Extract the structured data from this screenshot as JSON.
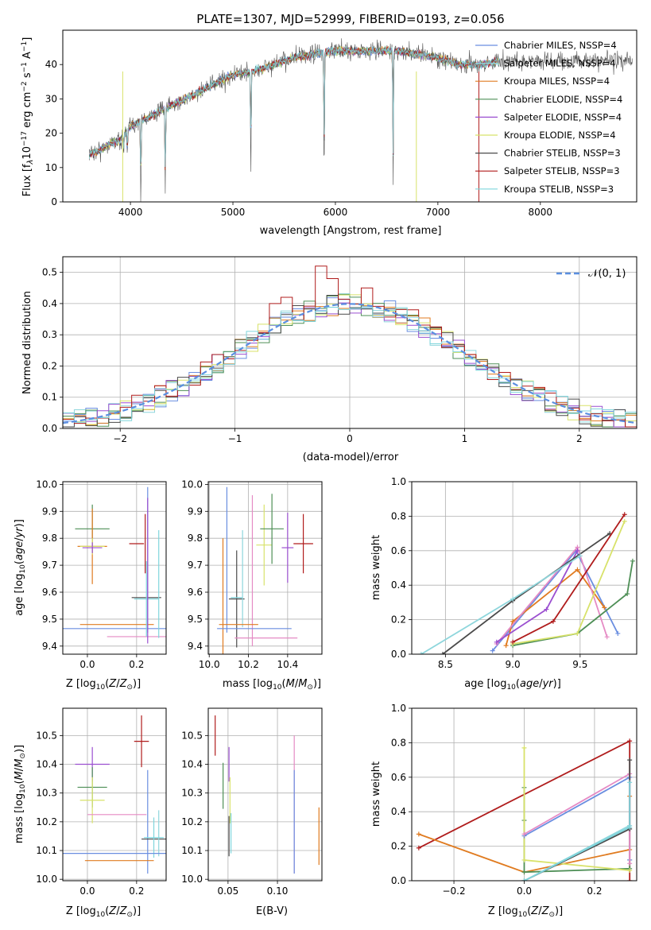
{
  "colors": {
    "chabrier_miles": "#6a8ee0",
    "salpeter_miles": "#8ed6dc",
    "kroupa_miles": "#e07b20",
    "chabrier_elodie": "#4e8f56",
    "salpeter_elodie": "#9b4fd0",
    "kroupa_elodie": "#d8e26a",
    "chabrier_stelib": "#4a4a4a",
    "salpeter_stelib": "#b01c1c",
    "kroupa_stelib": "#7fd5dc",
    "pink": "#e58ac4",
    "normal": "#5b8fe0"
  },
  "chart_data": [
    {
      "id": "spectrum",
      "type": "line",
      "title": "PLATE=1307, MJD=52999, FIBERID=0193, z=0.056",
      "xlabel": "wavelength [Angstrom, rest frame]",
      "ylabel": "Flux [fλ10⁻¹⁷ erg cm⁻² s⁻¹ A⁻¹]",
      "xlim": [
        3340,
        8940
      ],
      "ylim": [
        0,
        50
      ],
      "xticks": [
        4000,
        5000,
        6000,
        7000,
        8000
      ],
      "yticks": [
        0,
        10,
        20,
        30,
        40
      ],
      "grid": false,
      "legend_position": "top-right",
      "series": [
        {
          "name": "Chabrier MILES, NSSP=4",
          "color": "#6a8ee0"
        },
        {
          "name": "Salpeter MILES, NSSP=4",
          "color": "#8ed6dc"
        },
        {
          "name": "Kroupa MILES, NSSP=4",
          "color": "#e07b20"
        },
        {
          "name": "Chabrier ELODIE, NSSP=4",
          "color": "#4e8f56"
        },
        {
          "name": "Salpeter ELODIE, NSSP=4",
          "color": "#9b4fd0"
        },
        {
          "name": "Kroupa ELODIE, NSSP=4",
          "color": "#d8e26a"
        },
        {
          "name": "Chabrier STELIB, NSSP=3",
          "color": "#4a4a4a"
        },
        {
          "name": "Salpeter STELIB, NSSP=3",
          "color": "#b01c1c"
        },
        {
          "name": "Kroupa STELIB, NSSP=3",
          "color": "#7fd5dc"
        }
      ],
      "continuum": [
        [
          3600,
          14
        ],
        [
          3700,
          15
        ],
        [
          3800,
          17
        ],
        [
          3900,
          18
        ],
        [
          4000,
          22
        ],
        [
          4200,
          25
        ],
        [
          4400,
          28
        ],
        [
          4600,
          31
        ],
        [
          4800,
          34
        ],
        [
          5000,
          37
        ],
        [
          5200,
          38
        ],
        [
          5400,
          40
        ],
        [
          5600,
          42
        ],
        [
          5800,
          43
        ],
        [
          6000,
          44
        ],
        [
          6200,
          44
        ],
        [
          6400,
          44
        ],
        [
          6600,
          44
        ],
        [
          6800,
          43
        ],
        [
          7000,
          42
        ],
        [
          7200,
          40
        ],
        [
          7400,
          40
        ],
        [
          7600,
          41
        ]
      ],
      "model_end_wavelength": 7600,
      "observed_end_wavelength": 8900,
      "dips": [
        [
          3934,
          5
        ],
        [
          3969,
          8
        ],
        [
          4101,
          25
        ],
        [
          4340,
          27
        ],
        [
          5175,
          32
        ],
        [
          5890,
          38
        ],
        [
          6563,
          40
        ]
      ]
    },
    {
      "id": "residuals",
      "type": "line",
      "xlabel": "(data-model)/error",
      "ylabel": "Normed distribution",
      "xlim": [
        -2.5,
        2.5
      ],
      "ylim": [
        0,
        0.55
      ],
      "xticks": [
        -2,
        -1,
        0,
        1,
        2
      ],
      "xtick_labels": [
        "−2",
        "−1",
        "0",
        "1",
        "2"
      ],
      "yticks": [
        0.0,
        0.1,
        0.2,
        0.3,
        0.4,
        0.5
      ],
      "ytick_labels": [
        "0.0",
        "0.1",
        "0.2",
        "0.3",
        "0.4",
        "0.5"
      ],
      "grid": true,
      "legend_position": "top-right",
      "gaussian_label": "𝒩(0, 1)",
      "bin_width": 0.1,
      "spike_bins": [
        [
          -0.25,
          0.52
        ],
        [
          -0.15,
          0.48
        ],
        [
          0.15,
          0.45
        ],
        [
          -0.55,
          0.42
        ],
        [
          -0.65,
          0.4
        ],
        [
          0.55,
          0.38
        ]
      ]
    },
    {
      "id": "z-age",
      "type": "scatter",
      "xlabel": "Z [log₁₀(Z/Z☉)]",
      "ylabel": "age  [log₁₀(age/yr)]",
      "xlim": [
        -0.1,
        0.32
      ],
      "ylim": [
        9.37,
        10.01
      ],
      "xticks": [
        0.0,
        0.2
      ],
      "xtick_labels": [
        "0.0",
        "0.2"
      ],
      "yticks": [
        9.4,
        9.5,
        9.6,
        9.7,
        9.8,
        9.9,
        10.0
      ],
      "ytick_labels": [
        "9.4",
        "9.5",
        "9.6",
        "9.7",
        "9.8",
        "9.9",
        "10.0"
      ],
      "grid": true,
      "points": [
        {
          "x": 0.1,
          "y": 9.465,
          "xerr": 0.22,
          "yerr": 0.0,
          "color": "#6a8ee0"
        },
        {
          "x": 0.12,
          "y": 9.48,
          "xerr": 0.15,
          "yerr": 0.0,
          "color": "#e07b20"
        },
        {
          "x": 0.2,
          "y": 9.435,
          "xerr": 0.12,
          "yerr": 0.0,
          "color": "#e58ac4"
        },
        {
          "x": 0.24,
          "y": 9.58,
          "xerr": 0.06,
          "yerr": 0.0,
          "color": "#4a4a4a"
        },
        {
          "x": 0.24,
          "y": 9.575,
          "xerr": 0.05,
          "yerr": 0.14,
          "color": "#7fd5dc"
        },
        {
          "x": 0.245,
          "y": 9.72,
          "xerr": 0.0,
          "yerr": 0.27,
          "color": "#6a8ee0"
        },
        {
          "x": 0.245,
          "y": 9.68,
          "xerr": 0.0,
          "yerr": 0.27,
          "color": "#9b4fd0"
        },
        {
          "x": 0.29,
          "y": 9.63,
          "xerr": 0.0,
          "yerr": 0.2,
          "color": "#7fd5dc"
        },
        {
          "x": 0.235,
          "y": 9.78,
          "xerr": 0.0,
          "yerr": 0.11,
          "color": "#b01c1c"
        },
        {
          "x": 0.2,
          "y": 9.78,
          "xerr": 0.03,
          "yerr": 0.0,
          "color": "#b01c1c"
        },
        {
          "x": 0.02,
          "y": 9.835,
          "xerr": 0.07,
          "yerr": 0.09,
          "color": "#4e8f56"
        },
        {
          "x": 0.02,
          "y": 9.77,
          "xerr": 0.06,
          "yerr": 0.14,
          "color": "#e07b20"
        },
        {
          "x": 0.02,
          "y": 9.77,
          "xerr": 0.05,
          "yerr": 0.03,
          "color": "#d8e26a"
        },
        {
          "x": 0.02,
          "y": 9.765,
          "xerr": 0.04,
          "yerr": 0.02,
          "color": "#9b4fd0"
        }
      ]
    },
    {
      "id": "mass-age",
      "type": "scatter",
      "xlabel": "mass [log₁₀(M/M☉)]",
      "ylabel": "",
      "xlim": [
        9.995,
        10.575
      ],
      "ylim": [
        9.37,
        10.01
      ],
      "xticks": [
        10.0,
        10.2,
        10.4
      ],
      "xtick_labels": [
        "10.0",
        "10.2",
        "10.4"
      ],
      "yticks": [
        9.4,
        9.5,
        9.6,
        9.7,
        9.8,
        9.9,
        10.0
      ],
      "ytick_labels": [
        "9.4",
        "9.5",
        "9.6",
        "9.7",
        "9.8",
        "9.9",
        "10.0"
      ],
      "grid": true,
      "points": [
        {
          "x": 10.07,
          "y": 9.52,
          "xerr": 0.0,
          "yerr": 0.28,
          "color": "#e07b20"
        },
        {
          "x": 10.09,
          "y": 9.72,
          "xerr": 0.0,
          "yerr": 0.27,
          "color": "#6a8ee0"
        },
        {
          "x": 10.14,
          "y": 9.575,
          "xerr": 0.04,
          "yerr": 0.18,
          "color": "#4a4a4a"
        },
        {
          "x": 10.14,
          "y": 9.58,
          "xerr": 0.03,
          "yerr": 0.0,
          "color": "#7fd5dc"
        },
        {
          "x": 10.17,
          "y": 9.65,
          "xerr": 0.0,
          "yerr": 0.18,
          "color": "#8ed6dc"
        },
        {
          "x": 10.22,
          "y": 9.68,
          "xerr": 0.0,
          "yerr": 0.28,
          "color": "#e58ac4"
        },
        {
          "x": 10.15,
          "y": 9.48,
          "xerr": 0.1,
          "yerr": 0.0,
          "color": "#e07b20"
        },
        {
          "x": 10.23,
          "y": 9.465,
          "xerr": 0.19,
          "yerr": 0.0,
          "color": "#6a8ee0"
        },
        {
          "x": 10.29,
          "y": 9.43,
          "xerr": 0.16,
          "yerr": 0.0,
          "color": "#e58ac4"
        },
        {
          "x": 10.28,
          "y": 9.775,
          "xerr": 0.04,
          "yerr": 0.15,
          "color": "#d8e26a"
        },
        {
          "x": 10.32,
          "y": 9.835,
          "xerr": 0.06,
          "yerr": 0.13,
          "color": "#4e8f56"
        },
        {
          "x": 10.4,
          "y": 9.765,
          "xerr": 0.03,
          "yerr": 0.13,
          "color": "#9b4fd0"
        },
        {
          "x": 10.48,
          "y": 9.78,
          "xerr": 0.05,
          "yerr": 0.11,
          "color": "#b01c1c"
        }
      ]
    },
    {
      "id": "age-weight",
      "type": "line",
      "xlabel": "age  [log₁₀(age/yr)]",
      "ylabel": "mass weight",
      "xlim": [
        8.25,
        9.92
      ],
      "ylim": [
        0,
        1
      ],
      "xticks": [
        8.5,
        9.0,
        9.5
      ],
      "xtick_labels": [
        "8.5",
        "9.0",
        "9.5"
      ],
      "yticks": [
        0.0,
        0.2,
        0.4,
        0.6,
        0.8,
        1.0
      ],
      "ytick_labels": [
        "0.0",
        "0.2",
        "0.4",
        "0.6",
        "0.8",
        "1.0"
      ],
      "grid": true,
      "series": [
        {
          "color": "#6a8ee0",
          "x": [
            8.85,
            9.47,
            9.78
          ],
          "y": [
            0.02,
            0.6,
            0.12
          ]
        },
        {
          "color": "#e07b20",
          "x": [
            8.95,
            9.0,
            9.48,
            9.68
          ],
          "y": [
            0.05,
            0.19,
            0.49,
            0.27
          ]
        },
        {
          "color": "#e58ac4",
          "x": [
            8.88,
            9.48,
            9.7
          ],
          "y": [
            0.06,
            0.62,
            0.1
          ]
        },
        {
          "color": "#9b4fd0",
          "x": [
            8.88,
            9.25,
            9.48
          ],
          "y": [
            0.07,
            0.26,
            0.6
          ]
        },
        {
          "color": "#4a4a4a",
          "x": [
            8.48,
            9.0,
            9.72
          ],
          "y": [
            0.0,
            0.31,
            0.7
          ]
        },
        {
          "color": "#8ed6dc",
          "x": [
            8.32,
            9.0,
            9.5
          ],
          "y": [
            0.0,
            0.32,
            0.57
          ]
        },
        {
          "color": "#4e8f56",
          "x": [
            9.0,
            9.48,
            9.85,
            9.89
          ],
          "y": [
            0.05,
            0.12,
            0.35,
            0.54
          ]
        },
        {
          "color": "#d8e26a",
          "x": [
            9.0,
            9.48,
            9.83
          ],
          "y": [
            0.06,
            0.12,
            0.77
          ]
        },
        {
          "color": "#b01c1c",
          "x": [
            9.0,
            9.3,
            9.83
          ],
          "y": [
            0.07,
            0.19,
            0.81
          ]
        }
      ]
    },
    {
      "id": "z-mass",
      "type": "scatter",
      "xlabel": "Z [log₁₀(Z/Z☉)]",
      "ylabel": "mass [log₁₀(M/M☉)]",
      "xlim": [
        -0.1,
        0.32
      ],
      "ylim": [
        9.995,
        10.595
      ],
      "xticks": [
        0.0,
        0.2
      ],
      "xtick_labels": [
        "0.0",
        "0.2"
      ],
      "yticks": [
        10.0,
        10.1,
        10.2,
        10.3,
        10.4,
        10.5
      ],
      "ytick_labels": [
        "10.0",
        "10.1",
        "10.2",
        "10.3",
        "10.4",
        "10.5"
      ],
      "grid": true,
      "points": [
        {
          "x": 0.02,
          "y": 10.4,
          "xerr": 0.07,
          "yerr": 0.06,
          "color": "#9b4fd0"
        },
        {
          "x": 0.02,
          "y": 10.32,
          "xerr": 0.06,
          "yerr": 0.07,
          "color": "#4e8f56"
        },
        {
          "x": 0.02,
          "y": 10.275,
          "xerr": 0.05,
          "yerr": 0.08,
          "color": "#d8e26a"
        },
        {
          "x": 0.12,
          "y": 10.225,
          "xerr": 0.12,
          "yerr": 0.0,
          "color": "#e58ac4"
        },
        {
          "x": 0.22,
          "y": 10.48,
          "xerr": 0.03,
          "yerr": 0.09,
          "color": "#b01c1c"
        },
        {
          "x": 0.245,
          "y": 10.2,
          "xerr": 0.0,
          "yerr": 0.18,
          "color": "#6a8ee0"
        },
        {
          "x": 0.27,
          "y": 10.14,
          "xerr": 0.05,
          "yerr": 0.0,
          "color": "#4a4a4a"
        },
        {
          "x": 0.27,
          "y": 10.145,
          "xerr": 0.04,
          "yerr": 0.07,
          "color": "#7fd5dc"
        },
        {
          "x": 0.29,
          "y": 10.16,
          "xerr": 0.0,
          "yerr": 0.08,
          "color": "#8ed6dc"
        },
        {
          "x": 0.1,
          "y": 10.09,
          "xerr": 0.22,
          "yerr": 0.0,
          "color": "#6a8ee0"
        },
        {
          "x": 0.13,
          "y": 10.065,
          "xerr": 0.14,
          "yerr": 0.0,
          "color": "#e07b20"
        }
      ]
    },
    {
      "id": "ebv-mass",
      "type": "scatter",
      "xlabel": "E(B-V)",
      "ylabel": "",
      "xlim": [
        0.03,
        0.145
      ],
      "ylim": [
        9.995,
        10.595
      ],
      "xticks": [
        0.05,
        0.1
      ],
      "xtick_labels": [
        "0.05",
        "0.10"
      ],
      "yticks": [
        10.0,
        10.1,
        10.2,
        10.3,
        10.4,
        10.5
      ],
      "ytick_labels": [
        "10.0",
        "10.1",
        "10.2",
        "10.3",
        "10.4",
        "10.5"
      ],
      "grid": true,
      "points": [
        {
          "x": 0.037,
          "y": 10.5,
          "xerr": 0.0,
          "yerr": 0.07,
          "color": "#b01c1c"
        },
        {
          "x": 0.045,
          "y": 10.325,
          "xerr": 0.0,
          "yerr": 0.08,
          "color": "#4e8f56"
        },
        {
          "x": 0.051,
          "y": 10.4,
          "xerr": 0.0,
          "yerr": 0.06,
          "color": "#9b4fd0"
        },
        {
          "x": 0.052,
          "y": 10.275,
          "xerr": 0.0,
          "yerr": 0.08,
          "color": "#d8e26a"
        },
        {
          "x": 0.051,
          "y": 10.15,
          "xerr": 0.0,
          "yerr": 0.07,
          "color": "#4a4a4a"
        },
        {
          "x": 0.053,
          "y": 10.16,
          "xerr": 0.0,
          "yerr": 0.07,
          "color": "#7fd5dc"
        },
        {
          "x": 0.117,
          "y": 10.26,
          "xerr": 0.0,
          "yerr": 0.24,
          "color": "#e58ac4"
        },
        {
          "x": 0.117,
          "y": 10.2,
          "xerr": 0.0,
          "yerr": 0.18,
          "color": "#6a8ee0"
        },
        {
          "x": 0.142,
          "y": 10.15,
          "xerr": 0.0,
          "yerr": 0.1,
          "color": "#e07b20"
        }
      ]
    },
    {
      "id": "z-weight",
      "type": "line",
      "xlabel": "Z [log₁₀(Z/Z☉)]",
      "ylabel": "mass weight",
      "xlim": [
        -0.32,
        0.32
      ],
      "ylim": [
        0,
        1
      ],
      "xticks": [
        -0.2,
        0.0,
        0.2
      ],
      "xtick_labels": [
        "−0.2",
        "0.0",
        "0.2"
      ],
      "yticks": [
        0.0,
        0.2,
        0.4,
        0.6,
        0.8,
        1.0
      ],
      "ytick_labels": [
        "0.0",
        "0.2",
        "0.4",
        "0.6",
        "0.8",
        "1.0"
      ],
      "grid": true,
      "series": [
        {
          "color": "#b01c1c",
          "x": [
            -0.3,
            0.3,
            0.3
          ],
          "y": [
            0.19,
            0.81,
            0.0
          ]
        },
        {
          "color": "#e07b20",
          "x": [
            -0.3,
            0.0,
            0.3,
            0.3
          ],
          "y": [
            0.27,
            0.05,
            0.18,
            0.49
          ]
        },
        {
          "color": "#4e8f56",
          "x": [
            0.0,
            0.0,
            0.0,
            0.3,
            0.3
          ],
          "y": [
            0.54,
            0.35,
            0.05,
            0.07,
            0.12
          ]
        },
        {
          "color": "#d8e26a",
          "x": [
            0.0,
            0.0,
            0.3
          ],
          "y": [
            0.77,
            0.12,
            0.06
          ]
        },
        {
          "color": "#6a8ee0",
          "x": [
            0.0,
            0.3,
            0.3
          ],
          "y": [
            0.26,
            0.6,
            0.12
          ]
        },
        {
          "color": "#e58ac4",
          "x": [
            0.0,
            0.3,
            0.3
          ],
          "y": [
            0.27,
            0.62,
            0.1
          ]
        },
        {
          "color": "#4a4a4a",
          "x": [
            0.0,
            0.3,
            0.3
          ],
          "y": [
            0.0,
            0.3,
            0.7
          ]
        },
        {
          "color": "#8ed6dc",
          "x": [
            0.0,
            0.3
          ],
          "y": [
            0.0,
            0.32
          ]
        },
        {
          "color": "#7fd5dc",
          "x": [
            0.0,
            0.3,
            0.3
          ],
          "y": [
            0.0,
            0.31,
            0.57
          ]
        }
      ]
    }
  ]
}
